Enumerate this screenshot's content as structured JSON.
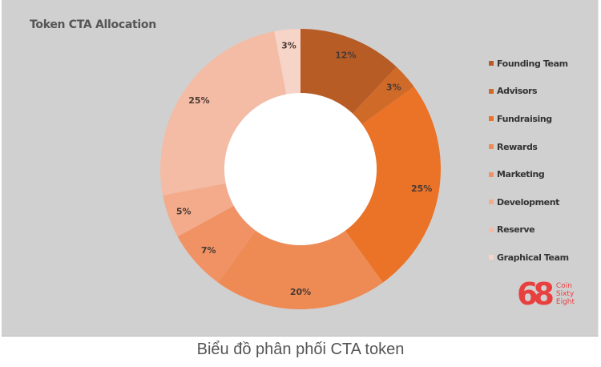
{
  "chart_data": {
    "type": "pie",
    "subtype": "donut",
    "title": "Token CTA Allocation",
    "caption": "Biểu đồ phân phối CTA token",
    "categories": [
      "Founding Team",
      "Advisors",
      "Fundraising",
      "Rewards",
      "Marketing",
      "Development",
      "Reserve",
      "Graphical Team"
    ],
    "values": [
      12,
      3,
      25,
      20,
      7,
      5,
      25,
      3
    ],
    "labels": [
      "12%",
      "3%",
      "25%",
      "20%",
      "7%",
      "5%",
      "25%",
      "3%"
    ],
    "colors": [
      "#b85c26",
      "#d06a28",
      "#ea7328",
      "#ee8b55",
      "#f09264",
      "#f3ab8c",
      "#f4bba5",
      "#f6d4c7"
    ],
    "legend_position": "right",
    "start_angle": 0,
    "direction": "clockwise"
  },
  "legend": {
    "items": [
      "Founding Team",
      "Advisors",
      "Fundraising",
      "Rewards",
      "Marketing",
      "Development",
      "Reserve",
      "Graphical Team"
    ]
  },
  "logo": {
    "mark": "68",
    "line1": "Coin",
    "line2": "Sixty",
    "line3": "Eight",
    "color": "#e8403f"
  }
}
